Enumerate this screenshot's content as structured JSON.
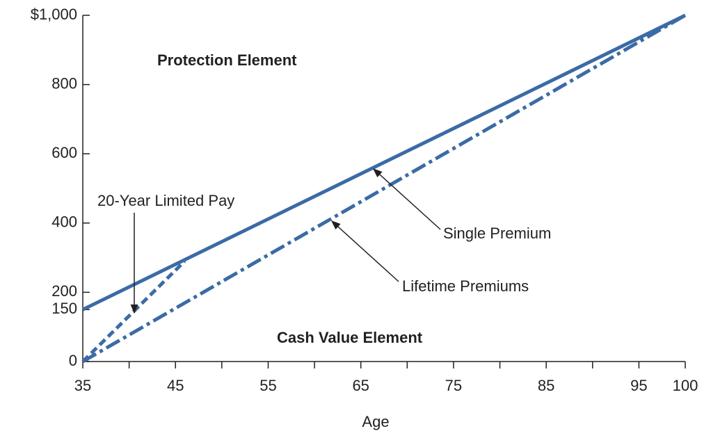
{
  "chart_data": {
    "type": "line",
    "x_label": "Age",
    "xlim": [
      35,
      100
    ],
    "xticks": [
      35,
      45,
      55,
      65,
      75,
      85,
      95,
      100
    ],
    "xminorticks": [
      40,
      50,
      60,
      70,
      80,
      90
    ],
    "ylim": [
      0,
      1000
    ],
    "yticks": [
      0,
      150,
      200,
      400,
      600,
      800,
      {
        "value": 1000,
        "label": "$1,000"
      }
    ],
    "series": [
      {
        "name": "Single Premium",
        "color": "#3b6ba5",
        "style": "solid",
        "x": [
          35,
          100
        ],
        "values": [
          150,
          1000
        ]
      },
      {
        "name": "Lifetime Premiums",
        "color": "#3b6ba5",
        "style": "dashdot",
        "x": [
          35,
          100
        ],
        "values": [
          0,
          1000
        ]
      },
      {
        "name": "20-Year Limited Pay",
        "color": "#3b6ba5",
        "style": "dashed",
        "x": [
          35,
          46
        ],
        "values": [
          0,
          290
        ]
      }
    ],
    "annotations": [
      "Protection Element",
      "Cash Value Element"
    ]
  }
}
